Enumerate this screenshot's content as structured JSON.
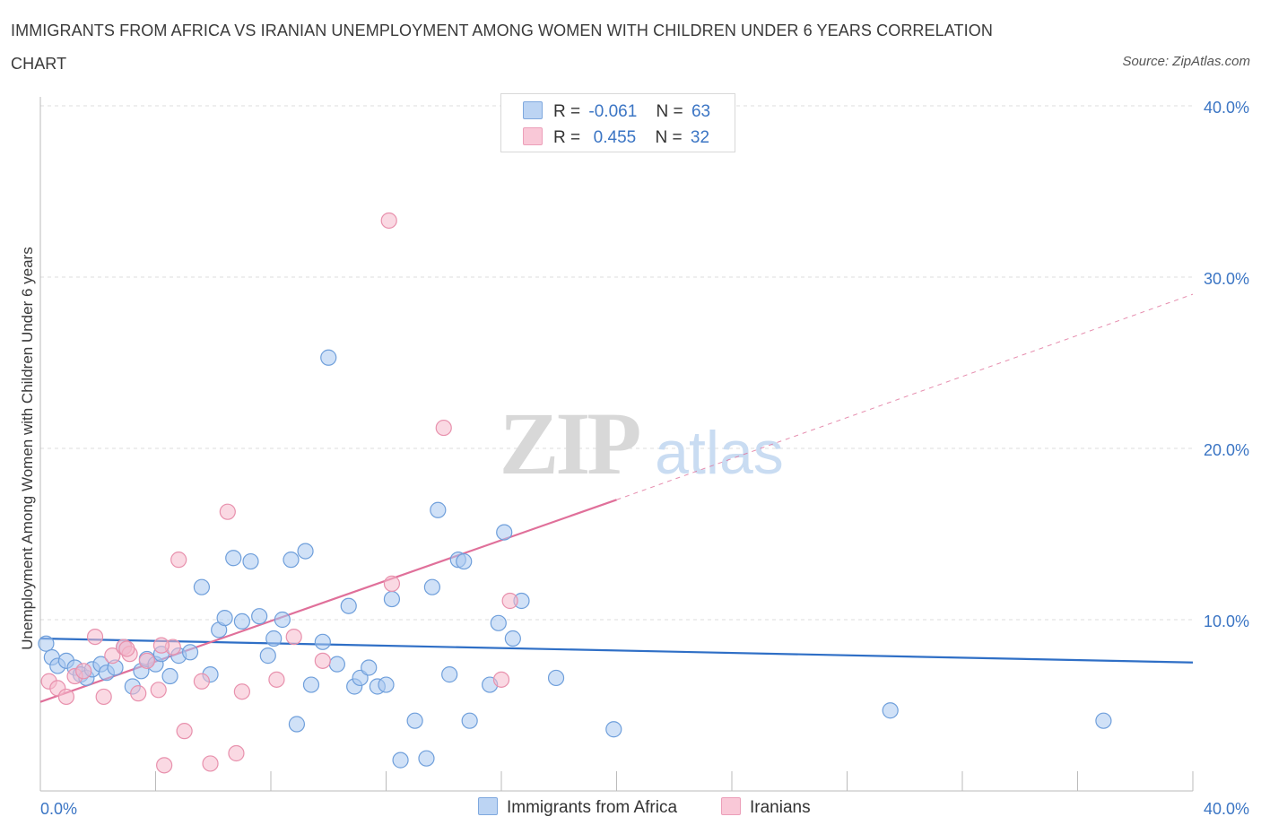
{
  "title": "IMMIGRANTS FROM AFRICA VS IRANIAN UNEMPLOYMENT AMONG WOMEN WITH CHILDREN UNDER 6 YEARS CORRELATION CHART",
  "source": "Source: ZipAtlas.com",
  "watermark": {
    "zip": "ZIP",
    "atlas": "atlas"
  },
  "legend": {
    "rows": [
      {
        "r_label": "R =",
        "r_value": "-0.061",
        "n_label": "N =",
        "n_value": "63"
      },
      {
        "r_label": "R =",
        "r_value": " 0.455",
        "n_label": "N =",
        "n_value": "32"
      }
    ]
  },
  "colors": {
    "blue_fill": "#aac8f0",
    "blue_stroke": "#6f9fdb",
    "blue_line": "#2f6fc6",
    "pink_fill": "#f6b9cc",
    "pink_stroke": "#e891ad",
    "pink_line": "#e0709a",
    "axis_text": "#3b75c4",
    "grid": "#dddddd"
  },
  "chart_data": {
    "type": "scatter",
    "title": "IMMIGRANTS FROM AFRICA VS IRANIAN UNEMPLOYMENT AMONG WOMEN WITH CHILDREN UNDER 6 YEARS CORRELATION CHART",
    "xlabel": "",
    "ylabel": "Unemployment Among Women with Children Under 6 years",
    "xlim": [
      0,
      40
    ],
    "ylim": [
      0,
      40
    ],
    "x_tick_labels": [
      "0.0%",
      "40.0%"
    ],
    "y_ticks": [
      10,
      20,
      30,
      40
    ],
    "y_tick_labels": [
      "10.0%",
      "20.0%",
      "30.0%",
      "40.0%"
    ],
    "grid": true,
    "legend_position": "top-center",
    "series": [
      {
        "name": "Immigrants from Africa",
        "color": "#aac8f0",
        "r": -0.061,
        "n": 63,
        "trend": {
          "x0": 0,
          "y0": 8.9,
          "x1": 40,
          "y1": 7.5,
          "dashed_after": null
        },
        "points": [
          [
            0.2,
            8.6
          ],
          [
            0.4,
            7.8
          ],
          [
            0.6,
            7.3
          ],
          [
            0.9,
            7.6
          ],
          [
            1.2,
            7.2
          ],
          [
            1.4,
            6.8
          ],
          [
            1.6,
            6.6
          ],
          [
            1.8,
            7.1
          ],
          [
            2.1,
            7.4
          ],
          [
            2.3,
            6.9
          ],
          [
            2.6,
            7.2
          ],
          [
            2.9,
            8.4
          ],
          [
            3.2,
            6.1
          ],
          [
            3.5,
            7.0
          ],
          [
            3.7,
            7.7
          ],
          [
            4.0,
            7.4
          ],
          [
            4.2,
            8.0
          ],
          [
            4.5,
            6.7
          ],
          [
            4.8,
            7.9
          ],
          [
            5.2,
            8.1
          ],
          [
            5.6,
            11.9
          ],
          [
            5.9,
            6.8
          ],
          [
            6.2,
            9.4
          ],
          [
            6.4,
            10.1
          ],
          [
            6.7,
            13.6
          ],
          [
            7.0,
            9.9
          ],
          [
            7.3,
            13.4
          ],
          [
            7.6,
            10.2
          ],
          [
            7.9,
            7.9
          ],
          [
            8.1,
            8.9
          ],
          [
            8.4,
            10.0
          ],
          [
            8.7,
            13.5
          ],
          [
            8.9,
            3.9
          ],
          [
            9.2,
            14.0
          ],
          [
            9.4,
            6.2
          ],
          [
            9.8,
            8.7
          ],
          [
            10.0,
            25.3
          ],
          [
            10.3,
            7.4
          ],
          [
            10.7,
            10.8
          ],
          [
            10.9,
            6.1
          ],
          [
            11.1,
            6.6
          ],
          [
            11.4,
            7.2
          ],
          [
            11.7,
            6.1
          ],
          [
            12.0,
            6.2
          ],
          [
            12.2,
            11.2
          ],
          [
            12.5,
            1.8
          ],
          [
            13.0,
            4.1
          ],
          [
            13.4,
            1.9
          ],
          [
            13.6,
            11.9
          ],
          [
            13.8,
            16.4
          ],
          [
            14.2,
            6.8
          ],
          [
            14.5,
            13.5
          ],
          [
            14.7,
            13.4
          ],
          [
            14.9,
            4.1
          ],
          [
            15.6,
            6.2
          ],
          [
            15.9,
            9.8
          ],
          [
            16.1,
            15.1
          ],
          [
            16.4,
            8.9
          ],
          [
            16.7,
            11.1
          ],
          [
            17.9,
            6.6
          ],
          [
            19.9,
            3.6
          ],
          [
            29.5,
            4.7
          ],
          [
            36.9,
            4.1
          ]
        ]
      },
      {
        "name": "Iranians",
        "color": "#f6b9cc",
        "r": 0.455,
        "n": 32,
        "trend": {
          "x0": 0,
          "y0": 5.2,
          "x1": 20,
          "y1": 17.0,
          "dashed_to_x": 40,
          "dashed_to_y": 29.0
        },
        "points": [
          [
            0.3,
            6.4
          ],
          [
            0.6,
            6.0
          ],
          [
            0.9,
            5.5
          ],
          [
            1.2,
            6.7
          ],
          [
            1.5,
            7.0
          ],
          [
            1.9,
            9.0
          ],
          [
            2.2,
            5.5
          ],
          [
            2.5,
            7.9
          ],
          [
            2.9,
            8.4
          ],
          [
            3.1,
            8.0
          ],
          [
            3.4,
            5.7
          ],
          [
            3.7,
            7.6
          ],
          [
            4.1,
            5.9
          ],
          [
            4.3,
            1.5
          ],
          [
            4.6,
            8.4
          ],
          [
            4.8,
            13.5
          ],
          [
            5.0,
            3.5
          ],
          [
            5.6,
            6.4
          ],
          [
            5.9,
            1.6
          ],
          [
            6.5,
            16.3
          ],
          [
            6.8,
            2.2
          ],
          [
            7.0,
            5.8
          ],
          [
            8.2,
            6.5
          ],
          [
            8.8,
            9.0
          ],
          [
            9.8,
            7.6
          ],
          [
            12.1,
            33.3
          ],
          [
            12.2,
            12.1
          ],
          [
            14.0,
            21.2
          ],
          [
            16.0,
            6.5
          ],
          [
            16.3,
            11.1
          ],
          [
            3.0,
            8.3
          ],
          [
            4.2,
            8.5
          ]
        ]
      }
    ]
  },
  "bottom_legend": [
    "Immigrants from Africa",
    "Iranians"
  ]
}
